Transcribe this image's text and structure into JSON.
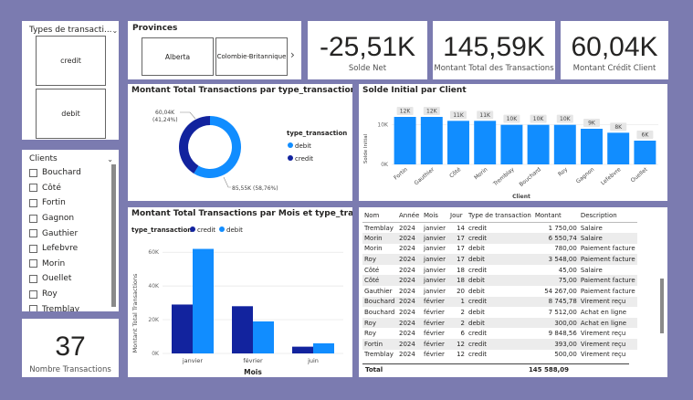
{
  "slicer_type": {
    "title": "Types de transacti...",
    "items": [
      "credit",
      "debit"
    ]
  },
  "slicer_province": {
    "title": "Provinces",
    "items": [
      "Alberta",
      "Colombie-Britannique"
    ]
  },
  "kpis": [
    {
      "value": "-25,51K",
      "label": "Solde Net"
    },
    {
      "value": "145,59K",
      "label": "Montant Total des Transactions"
    },
    {
      "value": "60,04K",
      "label": "Montant Crédit Client"
    }
  ],
  "clients": {
    "title": "Clients",
    "items": [
      "Bouchard",
      "Côté",
      "Fortin",
      "Gagnon",
      "Gauthier",
      "Lefebvre",
      "Morin",
      "Ouellet",
      "Roy",
      "Tremblay"
    ]
  },
  "count_card": {
    "value": "37",
    "label": "Nombre Transactions"
  },
  "colors": {
    "debit": "#118dff",
    "credit": "#12239e",
    "frame": "#7b7bb0"
  },
  "donut": {
    "title": "Montant Total Transactions par type_transaction",
    "legend_title": "type_transaction",
    "chart_data": {
      "type": "pie",
      "slices": [
        {
          "name": "debit",
          "value": 85.55,
          "value_label": "85,55K (58,76%)"
        },
        {
          "name": "credit",
          "value": 60.04,
          "value_label": "60,04K (41,24%)"
        }
      ]
    }
  },
  "solde": {
    "title": "Solde Initial par Client",
    "chart_data": {
      "type": "bar",
      "xlabel": "Client",
      "ylabel": "Solde Initial",
      "ylim": [
        0,
        12
      ],
      "yticks": [
        {
          "v": 0,
          "t": "0K"
        },
        {
          "v": 10,
          "t": "10K"
        }
      ],
      "categories": [
        "Fortin",
        "Gauthier",
        "Côté",
        "Morin",
        "Tremblay",
        "Bouchard",
        "Roy",
        "Gagnon",
        "Lefebvre",
        "Ouellet"
      ],
      "values": [
        12,
        12,
        11,
        11,
        10,
        10,
        10,
        9,
        8,
        6
      ],
      "labels": [
        "12K",
        "12K",
        "11K",
        "11K",
        "10K",
        "10K",
        "10K",
        "9K",
        "8K",
        "6K"
      ]
    }
  },
  "monthly": {
    "title": "Montant Total Transactions par Mois et type_transaction",
    "legend_title": "type_transaction",
    "chart_data": {
      "type": "bar",
      "xlabel": "Mois",
      "ylabel": "Montant Total Transactions",
      "ylim": [
        0,
        65
      ],
      "yticks": [
        {
          "v": 0,
          "t": "0K"
        },
        {
          "v": 20,
          "t": "20K"
        },
        {
          "v": 40,
          "t": "40K"
        },
        {
          "v": 60,
          "t": "60K"
        }
      ],
      "categories": [
        "janvier",
        "février",
        "juin"
      ],
      "series": [
        {
          "name": "credit",
          "values": [
            29,
            28,
            4
          ]
        },
        {
          "name": "debit",
          "values": [
            62,
            19,
            6
          ]
        }
      ]
    }
  },
  "table": {
    "columns": [
      "Nom",
      "Année",
      "Mois",
      "Jour",
      "Type de transaction",
      "Montant",
      "Description"
    ],
    "rows": [
      [
        "Tremblay",
        "2024",
        "janvier",
        "14",
        "credit",
        "1 750,00",
        "Salaire"
      ],
      [
        "Morin",
        "2024",
        "janvier",
        "17",
        "credit",
        "6 550,74",
        "Salaire"
      ],
      [
        "Morin",
        "2024",
        "janvier",
        "17",
        "debit",
        "780,00",
        "Paiement facture"
      ],
      [
        "Roy",
        "2024",
        "janvier",
        "17",
        "debit",
        "3 548,00",
        "Paiement facture"
      ],
      [
        "Côté",
        "2024",
        "janvier",
        "18",
        "credit",
        "45,00",
        "Salaire"
      ],
      [
        "Côté",
        "2024",
        "janvier",
        "18",
        "debit",
        "75,00",
        "Paiement facture"
      ],
      [
        "Gauthier",
        "2024",
        "janvier",
        "20",
        "debit",
        "54 267,00",
        "Paiement facture"
      ],
      [
        "Bouchard",
        "2024",
        "février",
        "1",
        "credit",
        "8 745,78",
        "Virement reçu"
      ],
      [
        "Bouchard",
        "2024",
        "février",
        "2",
        "debit",
        "7 512,00",
        "Achat en ligne"
      ],
      [
        "Roy",
        "2024",
        "février",
        "2",
        "debit",
        "300,00",
        "Achat en ligne"
      ],
      [
        "Roy",
        "2024",
        "février",
        "6",
        "credit",
        "9 848,56",
        "Virement reçu"
      ],
      [
        "Fortin",
        "2024",
        "février",
        "12",
        "credit",
        "393,00",
        "Virement reçu"
      ],
      [
        "Tremblay",
        "2024",
        "février",
        "12",
        "credit",
        "500,00",
        "Virement reçu"
      ]
    ],
    "total_label": "Total",
    "total_value": "145 588,09"
  }
}
